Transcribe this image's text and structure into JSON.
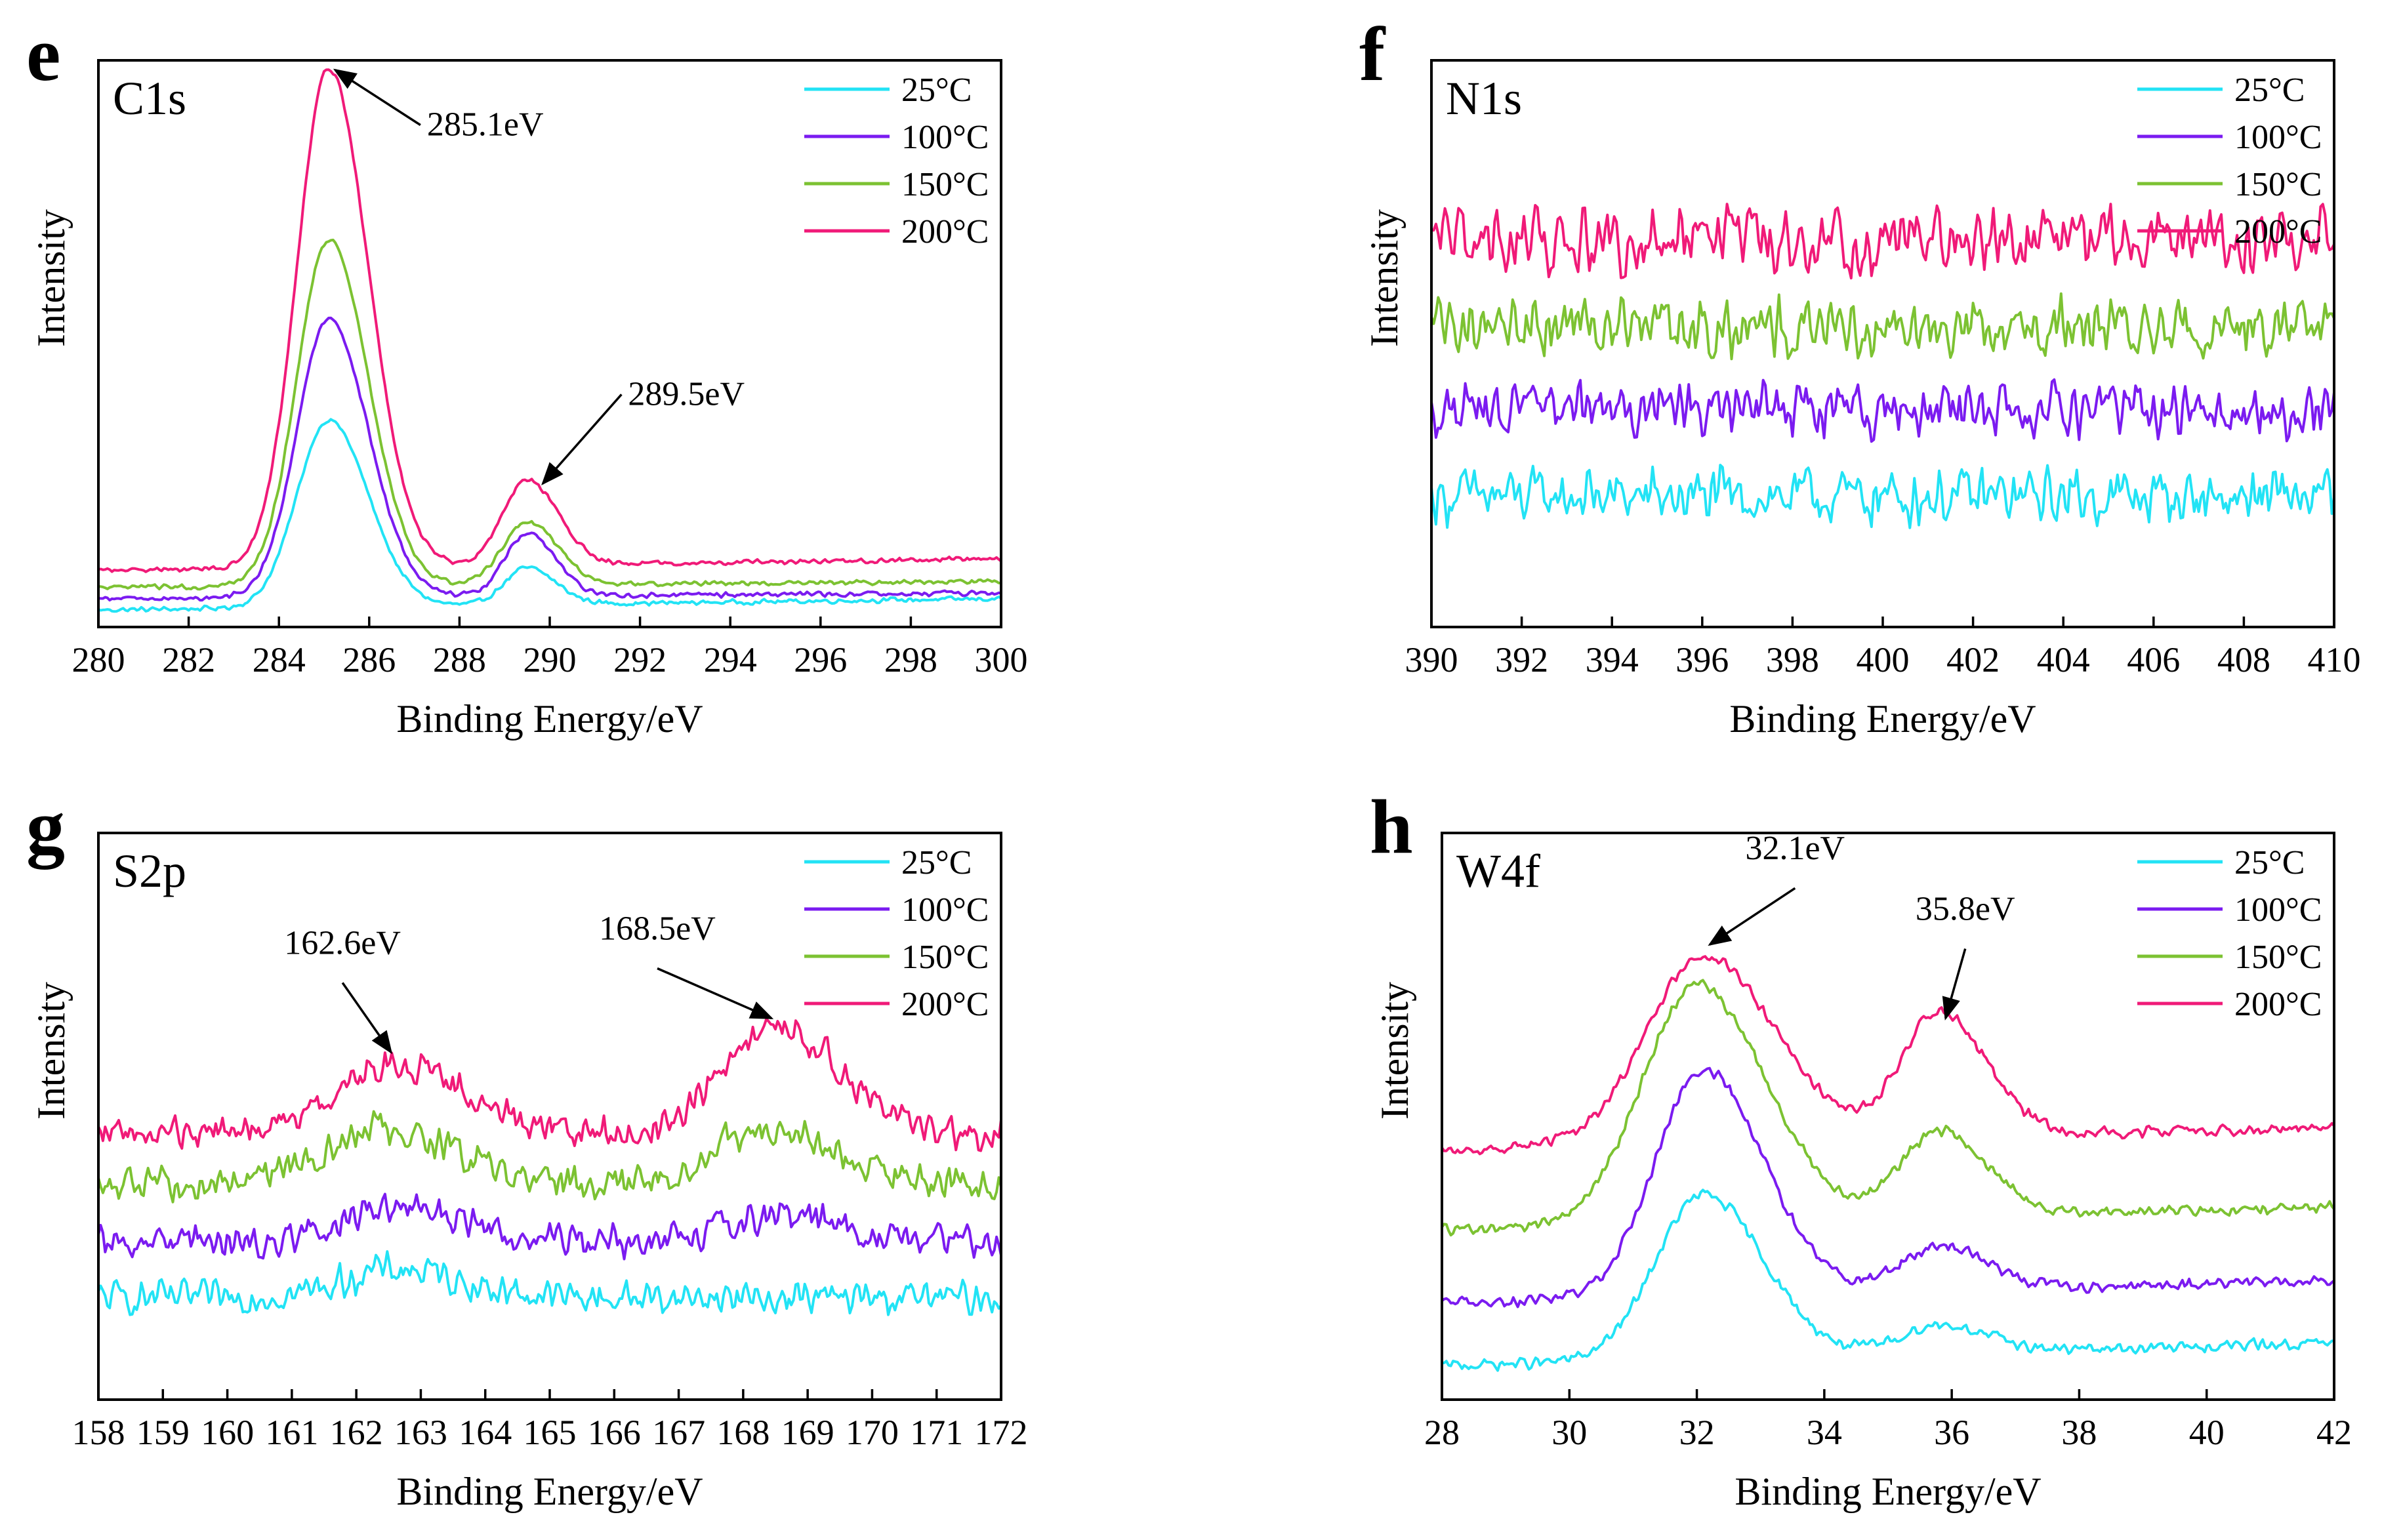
{
  "chart_data": [
    {
      "type": "line",
      "panel": "e",
      "element": "C1s",
      "xlabel": "Binding Energy/eV",
      "ylabel": "Intensity",
      "xlim": [
        280,
        300
      ],
      "xticks": [
        280,
        282,
        284,
        286,
        288,
        290,
        292,
        294,
        296,
        298,
        300
      ],
      "ylim": [
        0,
        100
      ],
      "legend_position": "top-right",
      "series": [
        {
          "name": "25°C",
          "color": "#22e3f5",
          "baseline": 3,
          "tail": 5,
          "peaks": [
            {
              "center": 285.1,
              "height": 33,
              "width": 0.7
            },
            {
              "center": 289.5,
              "height": 6.5,
              "width": 0.5
            }
          ],
          "noise": 0.5
        },
        {
          "name": "100°C",
          "color": "#7b1bf0",
          "baseline": 5,
          "tail": 6,
          "peaks": [
            {
              "center": 285.1,
              "height": 49,
              "width": 0.7
            },
            {
              "center": 289.5,
              "height": 11,
              "width": 0.5
            }
          ],
          "noise": 0.5
        },
        {
          "name": "150°C",
          "color": "#7cc232",
          "baseline": 7,
          "tail": 8,
          "peaks": [
            {
              "center": 285.1,
              "height": 61,
              "width": 0.7
            },
            {
              "center": 289.5,
              "height": 11,
              "width": 0.55
            }
          ],
          "noise": 0.5
        },
        {
          "name": "200°C",
          "color": "#f01a78",
          "baseline": 10,
          "tail": 12,
          "peaks": [
            {
              "center": 285.1,
              "height": 88,
              "width": 0.7
            },
            {
              "center": 289.5,
              "height": 15,
              "width": 0.55
            }
          ],
          "noise": 0.5
        }
      ],
      "annotations": [
        {
          "text": "285.1eV",
          "x": 285.1,
          "y": 99
        },
        {
          "text": "289.5eV",
          "x": 289.7,
          "y": 26
        }
      ]
    },
    {
      "type": "line",
      "panel": "f",
      "element": "N1s",
      "xlabel": "Binding Energy/eV",
      "ylabel": "Intensity",
      "xlim": [
        390,
        410
      ],
      "xticks": [
        390,
        392,
        394,
        396,
        398,
        400,
        402,
        404,
        406,
        408,
        410
      ],
      "ylim": [
        0,
        100
      ],
      "legend_position": "top-right",
      "series": [
        {
          "name": "25°C",
          "color": "#22e3f5",
          "baseline": 23,
          "tail": 23,
          "peaks": [],
          "noise": 6
        },
        {
          "name": "100°C",
          "color": "#7b1bf0",
          "baseline": 38,
          "tail": 38,
          "peaks": [],
          "noise": 6
        },
        {
          "name": "150°C",
          "color": "#7cc232",
          "baseline": 53,
          "tail": 53,
          "peaks": [],
          "noise": 6
        },
        {
          "name": "200°C",
          "color": "#f01a78",
          "baseline": 68,
          "tail": 68,
          "peaks": [],
          "noise": 7
        }
      ],
      "annotations": []
    },
    {
      "type": "line",
      "panel": "g",
      "element": "S2p",
      "xlabel": "Binding Energy/eV",
      "ylabel": "Intensity",
      "xlim": [
        158,
        172
      ],
      "xticks": [
        158,
        159,
        160,
        161,
        162,
        163,
        164,
        165,
        166,
        167,
        168,
        169,
        170,
        171,
        172
      ],
      "ylim": [
        0,
        100
      ],
      "legend_position": "top-right",
      "series": [
        {
          "name": "25°C",
          "color": "#22e3f5",
          "baseline": 18,
          "tail": 18,
          "peaks": [
            {
              "center": 162.6,
              "height": 5,
              "width": 0.8
            }
          ],
          "noise": 3.5
        },
        {
          "name": "100°C",
          "color": "#7b1bf0",
          "baseline": 28,
          "tail": 28,
          "peaks": [
            {
              "center": 162.6,
              "height": 6,
              "width": 0.8
            },
            {
              "center": 168.5,
              "height": 4,
              "width": 0.8
            }
          ],
          "noise": 3.5
        },
        {
          "name": "150°C",
          "color": "#7cc232",
          "baseline": 38,
          "tail": 38,
          "peaks": [
            {
              "center": 162.4,
              "height": 10,
              "width": 0.9
            },
            {
              "center": 168.3,
              "height": 10,
              "width": 0.8
            }
          ],
          "noise": 3.5
        },
        {
          "name": "200°C",
          "color": "#f01a78",
          "baseline": 47,
          "tail": 47,
          "peaks": [
            {
              "center": 162.6,
              "height": 12,
              "width": 0.9
            },
            {
              "center": 168.5,
              "height": 19,
              "width": 0.8
            }
          ],
          "noise": 3.5
        }
      ],
      "annotations": [
        {
          "text": "162.6eV",
          "x": 162.6,
          "y": 62
        },
        {
          "text": "168.5eV",
          "x": 168.5,
          "y": 68
        }
      ]
    },
    {
      "type": "line",
      "panel": "h",
      "element": "W4f",
      "xlabel": "Binding Energy/eV",
      "ylabel": "Intensity",
      "xlim": [
        28,
        42
      ],
      "xticks": [
        28,
        30,
        32,
        34,
        36,
        38,
        40,
        42
      ],
      "ylim": [
        0,
        100
      ],
      "legend_position": "top-right",
      "series": [
        {
          "name": "25°C",
          "color": "#22e3f5",
          "baseline": 6,
          "tail": 10,
          "peaks": [
            {
              "center": 32.1,
              "height": 29,
              "width": 0.75
            },
            {
              "center": 35.8,
              "height": 5,
              "width": 0.6
            }
          ],
          "noise": 1.2
        },
        {
          "name": "100°C",
          "color": "#7b1bf0",
          "baseline": 17,
          "tail": 21,
          "peaks": [
            {
              "center": 32.1,
              "height": 40,
              "width": 0.75
            },
            {
              "center": 35.8,
              "height": 8,
              "width": 0.6
            }
          ],
          "noise": 1.2
        },
        {
          "name": "150°C",
          "color": "#7cc232",
          "baseline": 30,
          "tail": 34,
          "peaks": [
            {
              "center": 32.0,
              "height": 42,
              "width": 0.85
            },
            {
              "center": 35.8,
              "height": 15,
              "width": 0.6
            }
          ],
          "noise": 1.2
        },
        {
          "name": "200°C",
          "color": "#f01a78",
          "baseline": 44,
          "tail": 48,
          "peaks": [
            {
              "center": 32.1,
              "height": 33,
              "width": 0.9
            },
            {
              "center": 35.8,
              "height": 22,
              "width": 0.6
            }
          ],
          "noise": 1.2
        }
      ],
      "annotations": [
        {
          "text": "32.1eV",
          "x": 32.1,
          "y": 81
        },
        {
          "text": "35.8eV",
          "x": 35.8,
          "y": 68
        }
      ]
    }
  ]
}
